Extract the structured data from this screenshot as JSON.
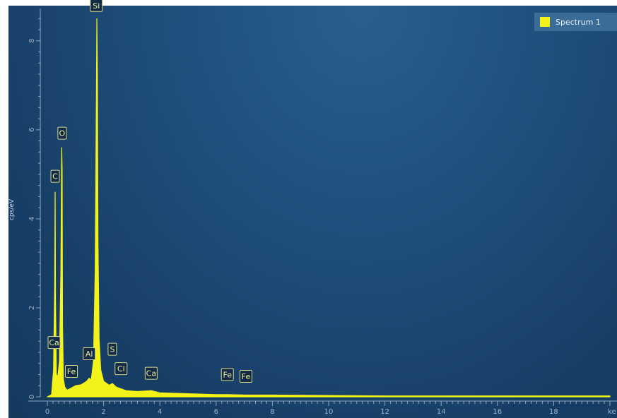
{
  "legend": {
    "label": "Spectrum 1",
    "color": "#f3f31a"
  },
  "chart_data": {
    "type": "line",
    "ylabel": "cps/eV",
    "xlabel": "keV",
    "xlim": [
      0,
      20
    ],
    "ylim": [
      0,
      8.6
    ],
    "x_ticks": [
      "0",
      "2",
      "4",
      "6",
      "8",
      "10",
      "12",
      "14",
      "16",
      "18"
    ],
    "x_tick_values": [
      0,
      2,
      4,
      6,
      8,
      10,
      12,
      14,
      16,
      18
    ],
    "x_end_label": "ke",
    "y_ticks": [
      "0",
      "2",
      "4",
      "6",
      "8"
    ],
    "y_tick_values": [
      0,
      2,
      4,
      6,
      8
    ],
    "grid": false,
    "legend_position": "top-right",
    "series": [
      {
        "name": "Spectrum 1",
        "color": "#f3f31a",
        "x": [
          0.0,
          0.15,
          0.22,
          0.26,
          0.277,
          0.29,
          0.32,
          0.37,
          0.43,
          0.48,
          0.51,
          0.525,
          0.54,
          0.57,
          0.62,
          0.7,
          0.8,
          1.0,
          1.2,
          1.4,
          1.487,
          1.56,
          1.64,
          1.7,
          1.74,
          1.76,
          1.78,
          1.8,
          1.84,
          1.9,
          2.0,
          2.2,
          2.31,
          2.45,
          2.62,
          2.8,
          3.2,
          3.69,
          4.0,
          5.0,
          6.0,
          6.4,
          7.06,
          8.0,
          10.0,
          12.0,
          14.0,
          16.0,
          18.0,
          20.0
        ],
        "y": [
          0.0,
          0.05,
          0.6,
          2.5,
          4.6,
          2.2,
          0.5,
          0.45,
          0.8,
          2.8,
          5.6,
          5.1,
          1.6,
          0.4,
          0.22,
          0.15,
          0.18,
          0.25,
          0.27,
          0.35,
          0.42,
          0.38,
          0.8,
          2.8,
          6.5,
          8.5,
          7.2,
          3.5,
          1.3,
          0.6,
          0.35,
          0.26,
          0.3,
          0.22,
          0.18,
          0.14,
          0.12,
          0.14,
          0.09,
          0.07,
          0.05,
          0.05,
          0.04,
          0.04,
          0.03,
          0.02,
          0.02,
          0.02,
          0.02,
          0.02
        ]
      }
    ],
    "peaks": [
      {
        "label": "Si",
        "x": 1.74,
        "y": 8.5
      },
      {
        "label": "O",
        "x": 0.525,
        "y": 5.6
      },
      {
        "label": "C",
        "x": 0.277,
        "y": 4.6
      },
      {
        "label": "Ca",
        "x": 0.34,
        "y": 0.45
      },
      {
        "label": "Fe",
        "x": 0.705,
        "y": 0.15
      },
      {
        "label": "Al",
        "x": 1.487,
        "y": 0.42
      },
      {
        "label": "S",
        "x": 2.31,
        "y": 0.3
      },
      {
        "label": "Cl",
        "x": 2.62,
        "y": 0.18
      },
      {
        "label": "Ca",
        "x": 3.69,
        "y": 0.14
      },
      {
        "label": "Fe",
        "x": 6.4,
        "y": 0.05
      },
      {
        "label": "Fe",
        "x": 7.06,
        "y": 0.04
      }
    ]
  }
}
